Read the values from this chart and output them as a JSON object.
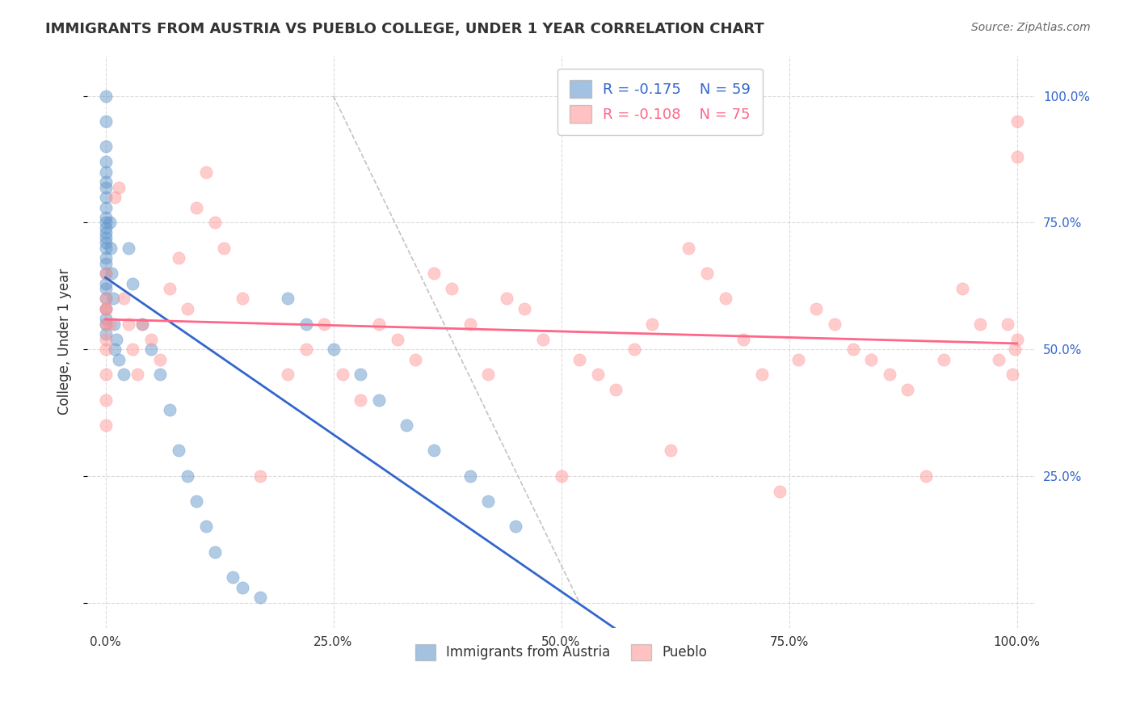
{
  "title": "IMMIGRANTS FROM AUSTRIA VS PUEBLO COLLEGE, UNDER 1 YEAR CORRELATION CHART",
  "source": "Source: ZipAtlas.com",
  "xlabel_bottom": "",
  "ylabel": "College, Under 1 year",
  "x_ticks": [
    0.0,
    25.0,
    50.0,
    75.0,
    100.0
  ],
  "x_tick_labels": [
    "0.0%",
    "25.0%",
    "50.0%",
    "75.0%",
    "100.0%"
  ],
  "y_ticks_left": [
    0.0,
    25.0,
    50.0,
    75.0,
    100.0
  ],
  "y_tick_labels_left": [
    "",
    "",
    "",
    "",
    ""
  ],
  "y_ticks_right": [
    25.0,
    50.0,
    75.0,
    100.0
  ],
  "y_tick_labels_right": [
    "25.0%",
    "50.0%",
    "75.0%",
    "100.0%"
  ],
  "legend_labels": [
    "Immigrants from Austria",
    "Pueblo"
  ],
  "legend_R": [
    "-0.175",
    "-0.108"
  ],
  "legend_N": [
    "59",
    "75"
  ],
  "blue_color": "#6699CC",
  "pink_color": "#FF9999",
  "blue_line_color": "#3366CC",
  "pink_line_color": "#FF6688",
  "blue_scatter": {
    "x": [
      0.0,
      0.0,
      0.0,
      0.0,
      0.0,
      0.0,
      0.0,
      0.0,
      0.0,
      0.0,
      0.0,
      0.0,
      0.0,
      0.0,
      0.0,
      0.0,
      0.0,
      0.0,
      0.0,
      0.0,
      0.0,
      0.0,
      0.0,
      0.0,
      0.0,
      0.0,
      0.5,
      0.6,
      0.7,
      0.8,
      0.9,
      1.0,
      1.2,
      1.5,
      2.0,
      2.5,
      3.0,
      4.0,
      5.0,
      6.0,
      7.0,
      8.0,
      9.0,
      10.0,
      11.0,
      12.0,
      14.0,
      15.0,
      17.0,
      20.0,
      22.0,
      25.0,
      28.0,
      30.0,
      33.0,
      36.0,
      40.0,
      42.0,
      45.0
    ],
    "y": [
      100.0,
      95.0,
      90.0,
      87.0,
      85.0,
      83.0,
      82.0,
      80.0,
      78.0,
      76.0,
      75.0,
      74.0,
      73.0,
      72.0,
      71.0,
      70.0,
      68.0,
      67.0,
      65.0,
      63.0,
      62.0,
      60.0,
      58.0,
      56.0,
      55.0,
      53.0,
      75.0,
      70.0,
      65.0,
      60.0,
      55.0,
      50.0,
      52.0,
      48.0,
      45.0,
      70.0,
      63.0,
      55.0,
      50.0,
      45.0,
      38.0,
      30.0,
      25.0,
      20.0,
      15.0,
      10.0,
      5.0,
      3.0,
      1.0,
      60.0,
      55.0,
      50.0,
      45.0,
      40.0,
      35.0,
      30.0,
      25.0,
      20.0,
      15.0
    ]
  },
  "pink_scatter": {
    "x": [
      0.0,
      0.0,
      0.0,
      0.0,
      0.0,
      0.0,
      0.0,
      0.0,
      0.0,
      0.0,
      0.5,
      1.0,
      1.5,
      2.0,
      2.5,
      3.0,
      3.5,
      4.0,
      5.0,
      6.0,
      7.0,
      8.0,
      9.0,
      10.0,
      11.0,
      12.0,
      13.0,
      15.0,
      17.0,
      20.0,
      22.0,
      24.0,
      26.0,
      28.0,
      30.0,
      32.0,
      34.0,
      36.0,
      38.0,
      40.0,
      42.0,
      44.0,
      46.0,
      48.0,
      50.0,
      52.0,
      54.0,
      56.0,
      58.0,
      60.0,
      62.0,
      64.0,
      66.0,
      68.0,
      70.0,
      72.0,
      74.0,
      76.0,
      78.0,
      80.0,
      82.0,
      84.0,
      86.0,
      88.0,
      90.0,
      92.0,
      94.0,
      96.0,
      98.0,
      99.0,
      99.5,
      99.8,
      100.0,
      100.0,
      100.0
    ],
    "y": [
      60.0,
      55.0,
      50.0,
      45.0,
      40.0,
      35.0,
      58.0,
      52.0,
      65.0,
      58.0,
      55.0,
      80.0,
      82.0,
      60.0,
      55.0,
      50.0,
      45.0,
      55.0,
      52.0,
      48.0,
      62.0,
      68.0,
      58.0,
      78.0,
      85.0,
      75.0,
      70.0,
      60.0,
      25.0,
      45.0,
      50.0,
      55.0,
      45.0,
      40.0,
      55.0,
      52.0,
      48.0,
      65.0,
      62.0,
      55.0,
      45.0,
      60.0,
      58.0,
      52.0,
      25.0,
      48.0,
      45.0,
      42.0,
      50.0,
      55.0,
      30.0,
      70.0,
      65.0,
      60.0,
      52.0,
      45.0,
      22.0,
      48.0,
      58.0,
      55.0,
      50.0,
      48.0,
      45.0,
      42.0,
      25.0,
      48.0,
      62.0,
      55.0,
      48.0,
      55.0,
      45.0,
      50.0,
      52.0,
      95.0,
      88.0
    ]
  },
  "xlim": [
    -2.0,
    102.0
  ],
  "ylim": [
    -5.0,
    108.0
  ],
  "figsize": [
    14.06,
    8.92
  ],
  "dpi": 100
}
